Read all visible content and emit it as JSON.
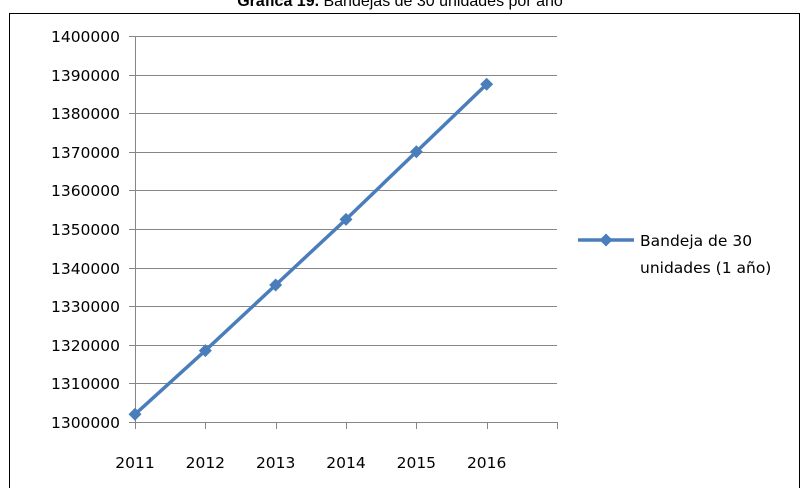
{
  "chart_data": {
    "type": "line",
    "title_bold": "Gráfica 19.",
    "title_rest": "Bandejas de 30 unidades por año",
    "categories": [
      "2011",
      "2012",
      "2013",
      "2014",
      "2015",
      "2016"
    ],
    "series": [
      {
        "name": "Bandeja de 30 unidades (1 año)",
        "name_lines": [
          "Bandeja de 30",
          "unidades (1 año)"
        ],
        "color": "#4a7ebb",
        "values": [
          1302000,
          1318500,
          1335500,
          1352500,
          1370000,
          1387500
        ]
      }
    ],
    "ylim": [
      1300000,
      1400000
    ],
    "yticks": [
      1300000,
      1310000,
      1320000,
      1330000,
      1340000,
      1350000,
      1360000,
      1370000,
      1380000,
      1390000,
      1400000
    ],
    "grid": true,
    "legend_position": "right",
    "marker": "diamond"
  }
}
